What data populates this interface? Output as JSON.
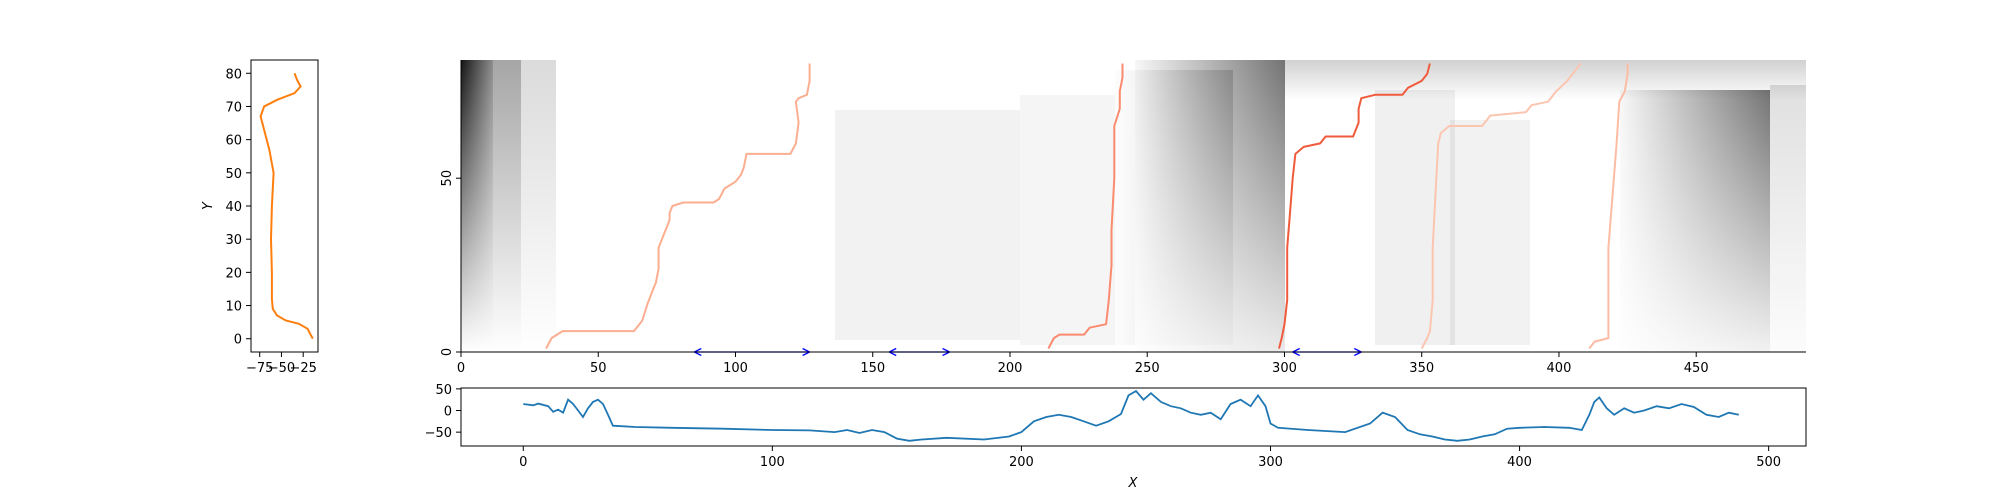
{
  "chart_data": [
    {
      "type": "line",
      "panel": "left-profile",
      "xlabel": "",
      "ylabel": "Y",
      "xlim": [
        -85,
        -8
      ],
      "ylim": [
        -4,
        84
      ],
      "xticks": [
        -75,
        -50,
        -25
      ],
      "xtick_labels": [
        "−75",
        "−50",
        "−25"
      ],
      "yticks": [
        0,
        10,
        20,
        30,
        40,
        50,
        60,
        70,
        80
      ],
      "color": "#ff7f0e",
      "points": [
        [
          -14,
          0
        ],
        [
          -16,
          1
        ],
        [
          -18,
          2
        ],
        [
          -20,
          3
        ],
        [
          -30,
          4.5
        ],
        [
          -45,
          5.5
        ],
        [
          -55,
          7
        ],
        [
          -60,
          9
        ],
        [
          -61,
          12
        ],
        [
          -61,
          20
        ],
        [
          -62,
          30
        ],
        [
          -61,
          40
        ],
        [
          -59,
          50
        ],
        [
          -64,
          57
        ],
        [
          -70,
          63
        ],
        [
          -74,
          67
        ],
        [
          -70,
          70
        ],
        [
          -55,
          72
        ],
        [
          -35,
          74
        ],
        [
          -28,
          76
        ],
        [
          -32,
          78
        ],
        [
          -35,
          80
        ]
      ]
    },
    {
      "type": "heatmap",
      "panel": "main-heatmap",
      "colormap": "Greys",
      "xlim": [
        0,
        490
      ],
      "ylim": [
        0,
        84
      ],
      "xticks": [
        0,
        50,
        100,
        150,
        200,
        250,
        300,
        350,
        400,
        450
      ],
      "yticks": [
        0,
        50
      ],
      "paths": [
        {
          "name": "path-1",
          "color": "#fcae91",
          "points": [
            [
              31,
              1
            ],
            [
              33,
              4
            ],
            [
              37,
              6
            ],
            [
              63,
              6
            ],
            [
              66,
              9
            ],
            [
              68,
              14
            ],
            [
              70,
              18
            ],
            [
              71,
              20
            ],
            [
              72,
              24
            ],
            [
              72,
              30
            ],
            [
              74,
              34
            ],
            [
              75,
              36
            ],
            [
              76,
              38
            ],
            [
              76,
              40
            ],
            [
              77,
              42
            ],
            [
              81,
              43
            ],
            [
              92,
              43
            ],
            [
              94,
              44
            ],
            [
              96,
              47
            ],
            [
              100,
              49
            ],
            [
              102,
              51
            ],
            [
              103,
              53
            ],
            [
              104,
              57
            ],
            [
              120,
              57
            ],
            [
              122,
              60
            ],
            [
              123,
              66
            ],
            [
              122,
              72
            ],
            [
              123,
              73
            ],
            [
              126,
              74
            ],
            [
              127,
              78
            ],
            [
              127,
              83
            ]
          ]
        },
        {
          "name": "path-2",
          "color": "#fb8b6f",
          "points": [
            [
              214,
              1
            ],
            [
              216,
              4
            ],
            [
              218,
              5
            ],
            [
              227,
              5
            ],
            [
              229,
              7
            ],
            [
              235,
              8
            ],
            [
              236,
              15
            ],
            [
              237,
              25
            ],
            [
              237,
              35
            ],
            [
              238,
              50
            ],
            [
              238,
              65
            ],
            [
              240,
              70
            ],
            [
              240,
              75
            ],
            [
              241,
              79
            ],
            [
              241,
              83
            ]
          ]
        },
        {
          "name": "path-3",
          "color": "#ef5b3c",
          "points": [
            [
              298,
              1
            ],
            [
              299,
              4
            ],
            [
              300,
              8
            ],
            [
              301,
              15
            ],
            [
              301,
              30
            ],
            [
              302,
              40
            ],
            [
              303,
              50
            ],
            [
              304,
              57
            ],
            [
              307,
              59
            ],
            [
              313,
              60
            ],
            [
              315,
              62
            ],
            [
              325,
              62
            ],
            [
              327,
              66
            ],
            [
              327,
              70
            ],
            [
              328,
              73
            ],
            [
              333,
              74
            ],
            [
              343,
              74
            ],
            [
              345,
              76
            ],
            [
              350,
              78
            ],
            [
              352,
              80
            ],
            [
              353,
              83
            ]
          ]
        },
        {
          "name": "path-4",
          "color": "#fcc5b0",
          "points": [
            [
              350,
              1
            ],
            [
              352,
              4
            ],
            [
              353,
              6
            ],
            [
              354,
              15
            ],
            [
              354,
              30
            ],
            [
              355,
              45
            ],
            [
              356,
              60
            ],
            [
              357,
              63
            ],
            [
              360,
              65
            ],
            [
              372,
              65
            ],
            [
              375,
              68
            ],
            [
              388,
              69
            ],
            [
              390,
              71
            ],
            [
              396,
              72
            ],
            [
              399,
              75
            ],
            [
              403,
              78
            ],
            [
              406,
              81
            ],
            [
              408,
              83
            ]
          ]
        },
        {
          "name": "path-5",
          "color": "#fcbca4",
          "points": [
            [
              411,
              1
            ],
            [
              413,
              3
            ],
            [
              418,
              4
            ],
            [
              418,
              15
            ],
            [
              418,
              30
            ],
            [
              420,
              50
            ],
            [
              421,
              60
            ],
            [
              422,
              72
            ],
            [
              424,
              75
            ],
            [
              425,
              80
            ],
            [
              425,
              83
            ]
          ]
        }
      ],
      "intervals": [
        [
          85,
          127
        ],
        [
          156,
          178
        ],
        [
          303,
          328
        ]
      ],
      "interval_color": "#0000ff"
    },
    {
      "type": "line",
      "panel": "bottom-signal",
      "xlabel": "X",
      "ylabel": "",
      "xlim": [
        -25,
        515
      ],
      "ylim": [
        -82,
        52
      ],
      "xticks": [
        0,
        100,
        200,
        300,
        400,
        500
      ],
      "yticks": [
        50,
        0,
        -50
      ],
      "ytick_labels": [
        "50",
        "0",
        "−50"
      ],
      "color": "#1f77b4",
      "points": [
        [
          0,
          15
        ],
        [
          4,
          12
        ],
        [
          6,
          16
        ],
        [
          10,
          10
        ],
        [
          12,
          -3
        ],
        [
          14,
          2
        ],
        [
          16,
          -5
        ],
        [
          18,
          25
        ],
        [
          20,
          15
        ],
        [
          22,
          0
        ],
        [
          24,
          -15
        ],
        [
          26,
          5
        ],
        [
          28,
          20
        ],
        [
          30,
          25
        ],
        [
          32,
          15
        ],
        [
          34,
          -10
        ],
        [
          36,
          -35
        ],
        [
          45,
          -38
        ],
        [
          60,
          -40
        ],
        [
          80,
          -42
        ],
        [
          100,
          -45
        ],
        [
          115,
          -46
        ],
        [
          125,
          -50
        ],
        [
          130,
          -45
        ],
        [
          135,
          -52
        ],
        [
          140,
          -45
        ],
        [
          145,
          -50
        ],
        [
          150,
          -65
        ],
        [
          155,
          -70
        ],
        [
          160,
          -67
        ],
        [
          170,
          -63
        ],
        [
          185,
          -67
        ],
        [
          195,
          -60
        ],
        [
          200,
          -50
        ],
        [
          205,
          -25
        ],
        [
          210,
          -15
        ],
        [
          215,
          -10
        ],
        [
          220,
          -15
        ],
        [
          225,
          -25
        ],
        [
          230,
          -35
        ],
        [
          235,
          -25
        ],
        [
          240,
          -8
        ],
        [
          243,
          35
        ],
        [
          246,
          45
        ],
        [
          249,
          25
        ],
        [
          252,
          40
        ],
        [
          256,
          20
        ],
        [
          260,
          10
        ],
        [
          264,
          5
        ],
        [
          268,
          -5
        ],
        [
          272,
          -10
        ],
        [
          276,
          -5
        ],
        [
          280,
          -20
        ],
        [
          284,
          15
        ],
        [
          288,
          25
        ],
        [
          292,
          10
        ],
        [
          295,
          35
        ],
        [
          298,
          10
        ],
        [
          300,
          -30
        ],
        [
          303,
          -40
        ],
        [
          315,
          -45
        ],
        [
          330,
          -50
        ],
        [
          340,
          -30
        ],
        [
          345,
          -5
        ],
        [
          350,
          -15
        ],
        [
          355,
          -45
        ],
        [
          360,
          -55
        ],
        [
          365,
          -60
        ],
        [
          370,
          -67
        ],
        [
          375,
          -70
        ],
        [
          380,
          -67
        ],
        [
          385,
          -60
        ],
        [
          390,
          -55
        ],
        [
          395,
          -42
        ],
        [
          400,
          -40
        ],
        [
          410,
          -38
        ],
        [
          420,
          -40
        ],
        [
          425,
          -45
        ],
        [
          428,
          -10
        ],
        [
          430,
          20
        ],
        [
          432,
          30
        ],
        [
          435,
          5
        ],
        [
          438,
          -10
        ],
        [
          442,
          5
        ],
        [
          446,
          -5
        ],
        [
          450,
          0
        ],
        [
          455,
          10
        ],
        [
          460,
          5
        ],
        [
          465,
          15
        ],
        [
          470,
          8
        ],
        [
          475,
          -10
        ],
        [
          480,
          -15
        ],
        [
          484,
          -5
        ],
        [
          488,
          -10
        ]
      ]
    }
  ]
}
